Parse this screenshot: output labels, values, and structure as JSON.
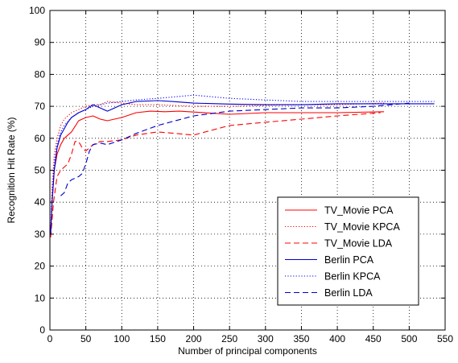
{
  "chart_data": {
    "type": "line",
    "xlabel": "Number of principal components",
    "ylabel": "Recognition Hit Rate (%)",
    "xlim": [
      0,
      550
    ],
    "ylim": [
      0,
      100
    ],
    "xticks": [
      0,
      50,
      100,
      150,
      200,
      250,
      300,
      350,
      400,
      450,
      500,
      550
    ],
    "yticks": [
      0,
      10,
      20,
      30,
      40,
      50,
      60,
      70,
      80,
      90,
      100
    ],
    "grid": true,
    "legend_position": "lower-right",
    "series": [
      {
        "name": "TV_Movie PCA",
        "color": "#ff0000",
        "dash": "solid",
        "x": [
          1,
          3,
          6,
          10,
          15,
          20,
          25,
          30,
          40,
          50,
          60,
          70,
          80,
          100,
          120,
          140,
          160,
          180,
          200,
          250,
          300,
          350,
          400,
          465
        ],
        "y": [
          30,
          40,
          50,
          55,
          58,
          60,
          61,
          62,
          65.5,
          66.5,
          67,
          66,
          65.5,
          66.5,
          68,
          68.5,
          68.3,
          68.5,
          68.2,
          67.5,
          68,
          68,
          68,
          68.3
        ]
      },
      {
        "name": "TV_Movie KPCA",
        "color": "#ff0000",
        "dash": "dotted",
        "x": [
          1,
          3,
          6,
          10,
          15,
          20,
          30,
          40,
          50,
          60,
          70,
          80,
          100,
          120,
          150,
          200,
          250,
          300,
          350,
          400,
          465
        ],
        "y": [
          30,
          45,
          55,
          60,
          64,
          66,
          68,
          69,
          70,
          70.5,
          70.5,
          71.5,
          71,
          70.5,
          70.5,
          70,
          70,
          70.3,
          70.5,
          70.5,
          71
        ]
      },
      {
        "name": "TV_Movie LDA",
        "color": "#ff0000",
        "dash": "dashed",
        "x": [
          1,
          5,
          10,
          15,
          20,
          25,
          30,
          35,
          40,
          45,
          50,
          60,
          70,
          80,
          100,
          120,
          150,
          175,
          200,
          250,
          300,
          350,
          400,
          460
        ],
        "y": [
          29,
          40,
          48,
          50,
          51,
          52,
          55,
          59,
          59,
          57,
          56,
          58,
          59,
          59,
          59.5,
          61,
          62,
          61.5,
          61,
          64,
          65,
          66,
          67,
          68
        ]
      },
      {
        "name": "Berlin PCA",
        "color": "#0000cc",
        "dash": "solid",
        "x": [
          1,
          3,
          6,
          10,
          15,
          20,
          25,
          30,
          40,
          50,
          60,
          70,
          80,
          100,
          120,
          150,
          170,
          200,
          250,
          300,
          350,
          400,
          450,
          500,
          535
        ],
        "y": [
          30,
          40,
          50,
          57,
          61,
          63,
          65,
          66.5,
          68,
          69,
          70.5,
          69.5,
          68.5,
          70.5,
          71.5,
          71.8,
          71.5,
          71,
          70.7,
          70.5,
          70.5,
          70.8,
          70.8,
          70.8,
          70.8
        ]
      },
      {
        "name": "Berlin KPCA",
        "color": "#0000ff",
        "dash": "dotted",
        "x": [
          1,
          3,
          6,
          10,
          15,
          20,
          30,
          40,
          50,
          60,
          70,
          80,
          100,
          120,
          150,
          200,
          250,
          300,
          350,
          400,
          450,
          500,
          535
        ],
        "y": [
          30,
          42,
          52,
          58,
          62,
          64,
          66.5,
          68,
          69,
          70,
          70.5,
          71,
          71.5,
          72,
          72.5,
          73.5,
          72.5,
          72,
          71.5,
          71.5,
          71.5,
          71.5,
          71.5
        ]
      },
      {
        "name": "Berlin LDA",
        "color": "#0000cc",
        "dash": "dashed",
        "x": [
          15,
          20,
          25,
          30,
          40,
          45,
          50,
          55,
          60,
          70,
          80,
          100,
          120,
          150,
          200,
          250,
          300,
          350,
          400,
          450,
          500
        ],
        "y": [
          42,
          43,
          46,
          47,
          48,
          49,
          52,
          56,
          58,
          58.5,
          58,
          59.5,
          61.5,
          64,
          67,
          68.5,
          69,
          69.5,
          69.5,
          70,
          71
        ]
      }
    ]
  }
}
